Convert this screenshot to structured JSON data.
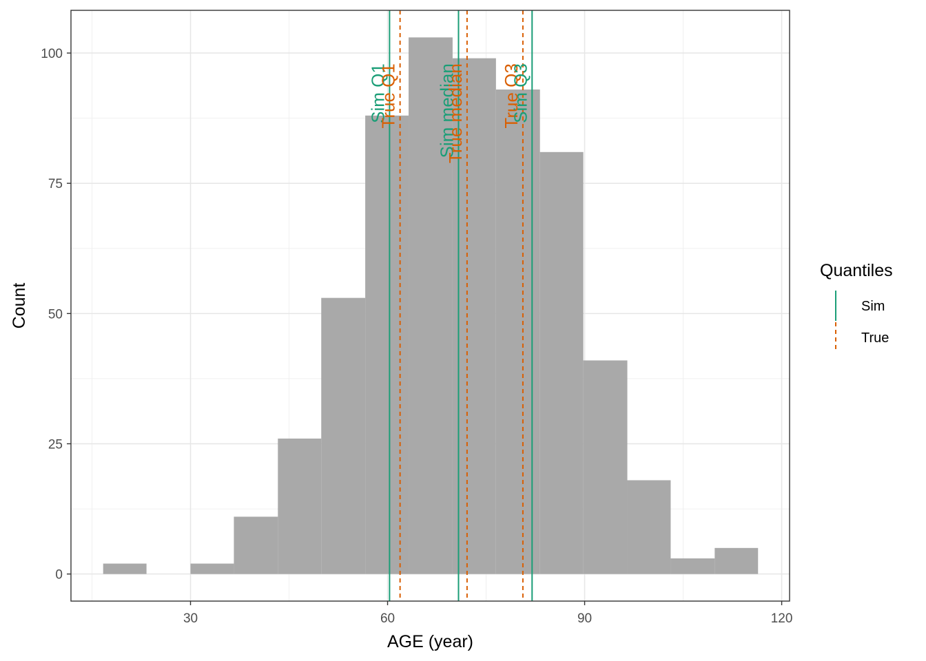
{
  "chart_data": {
    "type": "histogram",
    "xlabel": "AGE (year)",
    "ylabel": "Count",
    "xlim": [
      11.8,
      121.2
    ],
    "ylim": [
      -5.2,
      108.2
    ],
    "x_ticks": [
      30,
      60,
      90,
      120
    ],
    "x_minor_ticks": [
      15,
      45,
      75,
      105
    ],
    "y_ticks": [
      0,
      25,
      50,
      75,
      100
    ],
    "y_minor_ticks": [
      12.5,
      37.5,
      62.5,
      87.5
    ],
    "grid": true,
    "bar_color": "#A9A9A9",
    "bins": [
      {
        "x0": 16.7,
        "x1": 23.3,
        "count": 2
      },
      {
        "x0": 23.3,
        "x1": 30.0,
        "count": 0
      },
      {
        "x0": 30.0,
        "x1": 36.6,
        "count": 2
      },
      {
        "x0": 36.6,
        "x1": 43.3,
        "count": 11
      },
      {
        "x0": 43.3,
        "x1": 49.9,
        "count": 26
      },
      {
        "x0": 49.9,
        "x1": 56.6,
        "count": 53
      },
      {
        "x0": 56.6,
        "x1": 63.2,
        "count": 88
      },
      {
        "x0": 63.2,
        "x1": 69.9,
        "count": 103
      },
      {
        "x0": 69.9,
        "x1": 76.5,
        "count": 99
      },
      {
        "x0": 76.5,
        "x1": 83.2,
        "count": 93
      },
      {
        "x0": 83.2,
        "x1": 89.8,
        "count": 81
      },
      {
        "x0": 89.8,
        "x1": 96.5,
        "count": 41
      },
      {
        "x0": 96.5,
        "x1": 103.1,
        "count": 18
      },
      {
        "x0": 103.1,
        "x1": 109.8,
        "count": 3
      },
      {
        "x0": 109.8,
        "x1": 116.4,
        "count": 5
      }
    ],
    "quantile_lines": [
      {
        "group": "Sim",
        "label": "Sim Q1",
        "x": 60.3
      },
      {
        "group": "True",
        "label": "True Q1",
        "x": 61.9
      },
      {
        "group": "Sim",
        "label": "Sim median",
        "x": 70.8
      },
      {
        "group": "True",
        "label": "True median",
        "x": 72.1
      },
      {
        "group": "True",
        "label": "True Q3",
        "x": 80.6
      },
      {
        "group": "Sim",
        "label": "Sim Q3",
        "x": 82.0
      }
    ],
    "legend": {
      "title": "Quantiles",
      "position": "right",
      "entries": [
        {
          "group": "Sim",
          "label": "Sim",
          "color": "#1B9E77",
          "linetype": "solid"
        },
        {
          "group": "True",
          "label": "True",
          "color": "#D95F02",
          "linetype": "dashed"
        }
      ]
    }
  }
}
